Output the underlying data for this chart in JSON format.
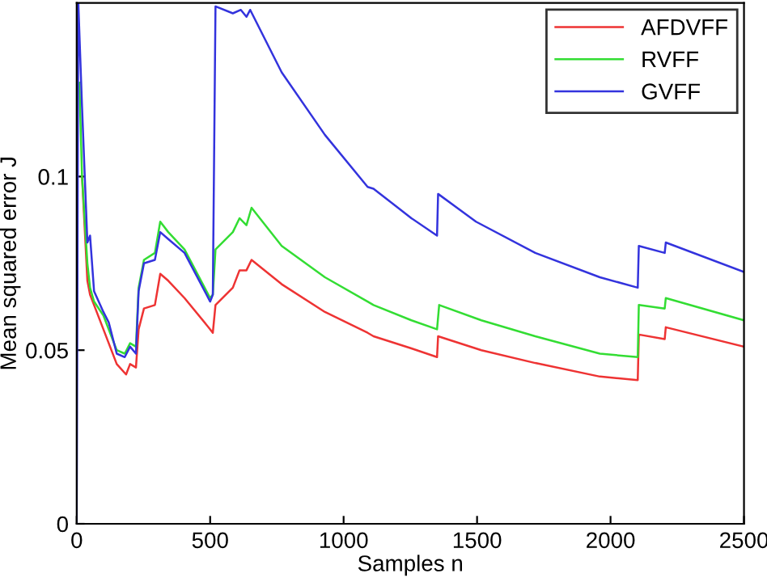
{
  "chart_data": {
    "type": "line",
    "xlabel": "Samples n",
    "ylabel": "Mean squared error J",
    "xlim": [
      0,
      2500
    ],
    "ylim": [
      0,
      0.15
    ],
    "xticks": [
      0,
      500,
      1000,
      1500,
      2000,
      2500
    ],
    "yticks": [
      0,
      {
        "value": 0.05,
        "label": "0.05"
      },
      {
        "value": 0.1,
        "label": "0.1"
      }
    ],
    "grid": false,
    "legend": "top right",
    "line_style": "solid",
    "marker": "none",
    "series": [
      {
        "name": "AFDVFF",
        "color": "#ee3333",
        "x": [
          20,
          40,
          50,
          65,
          100,
          150,
          185,
          200,
          222,
          232,
          252,
          293,
          313,
          343,
          404,
          500,
          510,
          520,
          585,
          610,
          636,
          655,
          768,
          930,
          1090,
          1112,
          1254,
          1350,
          1354,
          1516,
          1718,
          1960,
          2102,
          2106,
          2203,
          2207,
          2500
        ],
        "values": [
          0.1,
          0.07,
          0.066,
          0.063,
          0.056,
          0.046,
          0.043,
          0.046,
          0.045,
          0.056,
          0.062,
          0.063,
          0.072,
          0.07,
          0.065,
          0.056,
          0.055,
          0.063,
          0.068,
          0.073,
          0.073,
          0.076,
          0.069,
          0.061,
          0.055,
          0.054,
          0.0505,
          0.048,
          0.054,
          0.05,
          0.0463,
          0.0424,
          0.0414,
          0.0545,
          0.0532,
          0.0566,
          0.051
        ]
      },
      {
        "name": "RVFF",
        "color": "#33dd33",
        "x": [
          10,
          20,
          40,
          50,
          65,
          100,
          150,
          180,
          200,
          222,
          232,
          252,
          293,
          313,
          343,
          404,
          500,
          510,
          520,
          585,
          610,
          636,
          655,
          768,
          930,
          1090,
          1112,
          1254,
          1350,
          1358,
          1516,
          1718,
          1960,
          2102,
          2106,
          2203,
          2207,
          2500
        ],
        "values": [
          0.127,
          0.1,
          0.075,
          0.068,
          0.064,
          0.06,
          0.05,
          0.049,
          0.052,
          0.051,
          0.068,
          0.076,
          0.078,
          0.087,
          0.084,
          0.079,
          0.065,
          0.066,
          0.079,
          0.084,
          0.088,
          0.086,
          0.091,
          0.08,
          0.071,
          0.064,
          0.063,
          0.0586,
          0.056,
          0.063,
          0.0586,
          0.054,
          0.049,
          0.048,
          0.063,
          0.062,
          0.065,
          0.0586
        ]
      },
      {
        "name": "GVFF",
        "color": "#3333dd",
        "x": [
          0,
          6,
          20,
          40,
          50,
          65,
          100,
          120,
          150,
          180,
          200,
          222,
          232,
          252,
          293,
          313,
          343,
          404,
          500,
          510,
          520,
          585,
          615,
          636,
          650,
          768,
          930,
          1090,
          1112,
          1254,
          1350,
          1354,
          1496,
          1718,
          1960,
          2102,
          2106,
          2203,
          2207,
          2500
        ],
        "values": [
          0,
          0.15,
          0.12,
          0.081,
          0.083,
          0.067,
          0.061,
          0.058,
          0.049,
          0.048,
          0.051,
          0.049,
          0.067,
          0.075,
          0.076,
          0.084,
          0.082,
          0.078,
          0.064,
          0.066,
          0.149,
          0.147,
          0.148,
          0.146,
          0.148,
          0.13,
          0.112,
          0.097,
          0.0965,
          0.088,
          0.083,
          0.095,
          0.087,
          0.078,
          0.071,
          0.068,
          0.08,
          0.078,
          0.081,
          0.0725
        ]
      }
    ]
  }
}
